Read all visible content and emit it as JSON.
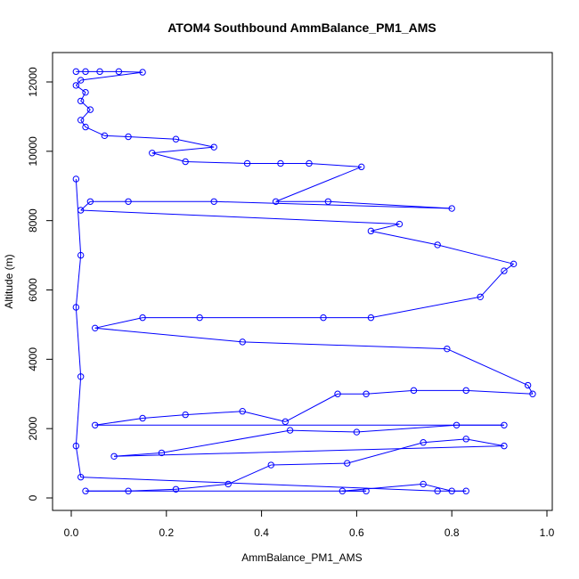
{
  "chart_data": {
    "type": "scatter",
    "title": "ATOM4 Southbound AmmBalance_PM1_AMS",
    "xlabel": "AmmBalance_PM1_AMS",
    "ylabel": "Altitude (m)",
    "xlim": [
      0,
      1.0
    ],
    "ylim": [
      0,
      12300
    ],
    "x_ticks": [
      "0.0",
      "0.2",
      "0.4",
      "0.6",
      "0.8",
      "1.0"
    ],
    "x_tick_values": [
      0,
      0.2,
      0.4,
      0.6,
      0.8,
      1.0
    ],
    "y_ticks": [
      "0",
      "2000",
      "4000",
      "6000",
      "8000",
      "10000",
      "12000"
    ],
    "y_tick_values": [
      0,
      2000,
      4000,
      6000,
      8000,
      10000,
      12000
    ],
    "grid": false,
    "legend": "none",
    "marker": "open-circle",
    "connected": true,
    "series_color": "#0000ff",
    "series": [
      {
        "points": [
          [
            0.01,
            12300
          ],
          [
            0.03,
            12300
          ],
          [
            0.06,
            12300
          ],
          [
            0.1,
            12300
          ],
          [
            0.15,
            12280
          ],
          [
            0.02,
            12050
          ],
          [
            0.01,
            11900
          ],
          [
            0.03,
            11700
          ],
          [
            0.02,
            11450
          ],
          [
            0.04,
            11200
          ],
          [
            0.02,
            10900
          ],
          [
            0.03,
            10700
          ],
          [
            0.07,
            10450
          ],
          [
            0.12,
            10420
          ],
          [
            0.22,
            10350
          ],
          [
            0.3,
            10120
          ],
          [
            0.17,
            9950
          ],
          [
            0.24,
            9700
          ],
          [
            0.37,
            9650
          ],
          [
            0.44,
            9650
          ],
          [
            0.5,
            9650
          ],
          [
            0.61,
            9550
          ],
          [
            0.43,
            8550
          ],
          [
            0.54,
            8550
          ],
          [
            0.8,
            8350
          ],
          [
            0.3,
            8550
          ],
          [
            0.12,
            8550
          ],
          [
            0.04,
            8550
          ],
          [
            0.02,
            8300
          ],
          [
            0.69,
            7900
          ],
          [
            0.63,
            7700
          ],
          [
            0.77,
            7300
          ],
          [
            0.93,
            6750
          ],
          [
            0.91,
            6550
          ],
          [
            0.86,
            5800
          ],
          [
            0.63,
            5200
          ],
          [
            0.53,
            5200
          ],
          [
            0.27,
            5200
          ],
          [
            0.15,
            5200
          ],
          [
            0.05,
            4900
          ],
          [
            0.36,
            4500
          ],
          [
            0.79,
            4300
          ],
          [
            0.96,
            3250
          ],
          [
            0.97,
            3000
          ],
          [
            0.83,
            3100
          ],
          [
            0.72,
            3100
          ],
          [
            0.62,
            3000
          ],
          [
            0.56,
            3000
          ],
          [
            0.45,
            2200
          ],
          [
            0.36,
            2500
          ],
          [
            0.24,
            2400
          ],
          [
            0.15,
            2300
          ],
          [
            0.05,
            2100
          ],
          [
            0.91,
            2100
          ],
          [
            0.81,
            2100
          ],
          [
            0.6,
            1900
          ],
          [
            0.46,
            1950
          ],
          [
            0.19,
            1300
          ],
          [
            0.09,
            1200
          ],
          [
            0.91,
            1500
          ],
          [
            0.83,
            1700
          ],
          [
            0.74,
            1600
          ],
          [
            0.58,
            1000
          ],
          [
            0.42,
            950
          ],
          [
            0.33,
            400
          ],
          [
            0.22,
            250
          ],
          [
            0.12,
            200
          ],
          [
            0.03,
            200
          ],
          [
            0.62,
            200
          ],
          [
            0.57,
            200
          ],
          [
            0.74,
            400
          ],
          [
            0.8,
            200
          ],
          [
            0.83,
            200
          ],
          [
            0.77,
            200
          ],
          [
            0.02,
            600
          ],
          [
            0.01,
            1500
          ],
          [
            0.02,
            3500
          ],
          [
            0.01,
            5500
          ],
          [
            0.02,
            7000
          ],
          [
            0.01,
            9200
          ]
        ]
      }
    ]
  }
}
